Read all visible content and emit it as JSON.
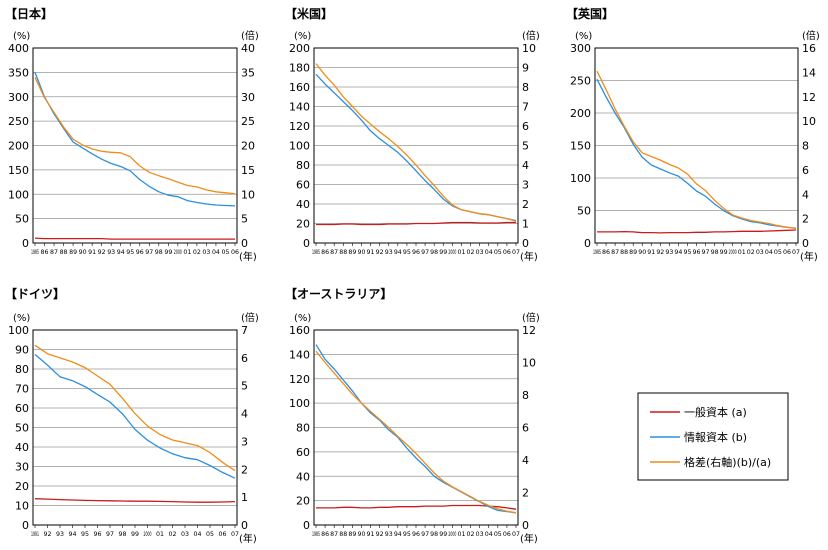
{
  "legend": {
    "items": [
      {
        "label": "一般資本 (a)",
        "color": "#cc1a1a"
      },
      {
        "label": "情報資本 (b)",
        "color": "#2b8fe0"
      },
      {
        "label": "格差(右軸)(b)/(a)",
        "color": "#f08c1a"
      }
    ]
  },
  "chart_data": [
    {
      "type": "line",
      "title": "【日本】",
      "left_unit": "(%)",
      "right_unit": "(倍)",
      "x_unit": "(年)",
      "x_labels": [
        "1985",
        "86",
        "87",
        "88",
        "89",
        "90",
        "91",
        "92",
        "93",
        "94",
        "95",
        "96",
        "97",
        "98",
        "99",
        "2000",
        "01",
        "02",
        "03",
        "04",
        "05",
        "06"
      ],
      "ylim_left": [
        0,
        400
      ],
      "yticks_left": [
        0,
        50,
        100,
        150,
        200,
        250,
        300,
        350,
        400
      ],
      "ylim_right": [
        0,
        40
      ],
      "yticks_right": [
        0,
        5,
        10,
        15,
        20,
        25,
        30,
        35,
        40
      ],
      "series": [
        {
          "name": "一般資本 (a)",
          "axis": "left",
          "color": "#cc1a1a",
          "values": [
            10,
            9,
            9,
            9,
            9,
            9,
            9,
            9,
            8,
            8,
            8,
            8,
            8,
            8,
            8,
            8,
            8,
            8,
            8,
            8,
            8,
            8
          ]
        },
        {
          "name": "情報資本 (b)",
          "axis": "left",
          "color": "#2b8fe0",
          "values": [
            350,
            300,
            265,
            235,
            207,
            195,
            183,
            172,
            163,
            157,
            148,
            130,
            116,
            105,
            98,
            95,
            87,
            83,
            80,
            78,
            77,
            76
          ]
        },
        {
          "name": "格差(右軸)(b)/(a)",
          "axis": "right",
          "color": "#f08c1a",
          "values": [
            34,
            29.8,
            26.8,
            23.8,
            21.3,
            20.1,
            19.3,
            18.8,
            18.6,
            18.5,
            17.7,
            15.8,
            14.5,
            13.8,
            13.2,
            12.5,
            11.8,
            11.5,
            10.9,
            10.5,
            10.3,
            10.1
          ]
        }
      ]
    },
    {
      "type": "line",
      "title": "【米国】",
      "left_unit": "(%)",
      "right_unit": "(倍)",
      "x_unit": "(年)",
      "x_labels": [
        "1985",
        "86",
        "87",
        "88",
        "89",
        "90",
        "91",
        "92",
        "93",
        "94",
        "95",
        "96",
        "97",
        "98",
        "99",
        "2000",
        "01",
        "02",
        "03",
        "04",
        "05",
        "06",
        "07"
      ],
      "ylim_left": [
        0,
        200
      ],
      "yticks_left": [
        0,
        20,
        40,
        60,
        80,
        100,
        120,
        140,
        160,
        180,
        200
      ],
      "ylim_right": [
        0,
        10
      ],
      "yticks_right": [
        0,
        1,
        2,
        3,
        4,
        5,
        6,
        7,
        8,
        9,
        10
      ],
      "series": [
        {
          "name": "一般資本 (a)",
          "axis": "left",
          "color": "#cc1a1a",
          "values": [
            19,
            19,
            19,
            19.5,
            19.5,
            19,
            19,
            19,
            19.5,
            19.5,
            19.5,
            20,
            20,
            20,
            20.5,
            21,
            21,
            21,
            20.5,
            20.5,
            20.5,
            21,
            21
          ]
        },
        {
          "name": "情報資本 (b)",
          "axis": "left",
          "color": "#2b8fe0",
          "values": [
            173,
            163,
            154,
            145,
            136,
            126,
            115,
            107,
            100,
            93,
            84,
            74,
            64,
            55,
            45,
            38,
            34,
            32,
            30,
            29,
            27,
            25,
            23
          ]
        },
        {
          "name": "格差(右軸)(b)/(a)",
          "axis": "right",
          "color": "#f08c1a",
          "values": [
            9.2,
            8.6,
            8.1,
            7.5,
            7.0,
            6.5,
            6.1,
            5.7,
            5.35,
            4.95,
            4.5,
            4.0,
            3.45,
            2.95,
            2.4,
            1.95,
            1.7,
            1.6,
            1.5,
            1.45,
            1.35,
            1.25,
            1.12
          ]
        }
      ]
    },
    {
      "type": "line",
      "title": "【英国】",
      "left_unit": "(%)",
      "right_unit": "(倍)",
      "x_unit": "(年)",
      "x_labels": [
        "1985",
        "86",
        "87",
        "88",
        "89",
        "90",
        "91",
        "92",
        "93",
        "94",
        "95",
        "96",
        "97",
        "98",
        "99",
        "2000",
        "01",
        "02",
        "03",
        "04",
        "05",
        "06",
        "07"
      ],
      "ylim_left": [
        0,
        300
      ],
      "yticks_left": [
        0,
        50,
        100,
        150,
        200,
        250,
        300
      ],
      "ylim_right": [
        0,
        16
      ],
      "yticks_right": [
        0,
        2,
        4,
        6,
        8,
        10,
        12,
        14,
        16
      ],
      "series": [
        {
          "name": "一般資本 (a)",
          "axis": "left",
          "color": "#cc1a1a",
          "values": [
            17,
            17,
            17,
            17.5,
            17,
            16,
            16,
            15.5,
            16,
            16,
            16,
            16.5,
            16.5,
            17,
            17,
            17.5,
            18,
            18,
            18,
            18.5,
            19,
            19.5,
            20
          ]
        },
        {
          "name": "情報資本 (b)",
          "axis": "left",
          "color": "#2b8fe0",
          "values": [
            252,
            225,
            200,
            178,
            152,
            132,
            120,
            114,
            108,
            103,
            92,
            80,
            72,
            60,
            50,
            42,
            37,
            33,
            31,
            28,
            26,
            24,
            23
          ]
        },
        {
          "name": "格差(右軸)(b)/(a)",
          "axis": "right",
          "color": "#f08c1a",
          "values": [
            14.1,
            12.6,
            11.0,
            9.6,
            8.3,
            7.4,
            7.1,
            6.8,
            6.45,
            6.15,
            5.65,
            4.85,
            4.3,
            3.5,
            2.85,
            2.3,
            2.05,
            1.85,
            1.72,
            1.6,
            1.42,
            1.3,
            1.2
          ]
        }
      ]
    },
    {
      "type": "line",
      "title": "【ドイツ】",
      "left_unit": "(%)",
      "right_unit": "(倍)",
      "x_unit": "(年)",
      "x_labels": [
        "1991",
        "92",
        "93",
        "94",
        "95",
        "96",
        "97",
        "98",
        "99",
        "2000",
        "01",
        "02",
        "03",
        "04",
        "05",
        "06",
        "07"
      ],
      "ylim_left": [
        0,
        100
      ],
      "yticks_left": [
        0,
        10,
        20,
        30,
        40,
        50,
        60,
        70,
        80,
        90,
        100
      ],
      "ylim_right": [
        0,
        7
      ],
      "yticks_right": [
        0,
        1,
        2,
        3,
        4,
        5,
        6,
        7
      ],
      "series": [
        {
          "name": "一般資本 (a)",
          "axis": "left",
          "color": "#cc1a1a",
          "values": [
            13.5,
            13.3,
            13,
            12.8,
            12.6,
            12.5,
            12.4,
            12.3,
            12.2,
            12.2,
            12.1,
            12.0,
            11.8,
            11.7,
            11.7,
            11.8,
            12.0
          ]
        },
        {
          "name": "情報資本 (b)",
          "axis": "left",
          "color": "#2b8fe0",
          "values": [
            87.5,
            82,
            76,
            74,
            71,
            67,
            63,
            57,
            49,
            43.5,
            39.5,
            36.5,
            34.5,
            33.5,
            30.5,
            27,
            24
          ]
        },
        {
          "name": "格差(右軸)(b)/(a)",
          "axis": "right",
          "color": "#f08c1a",
          "values": [
            6.45,
            6.15,
            6.0,
            5.85,
            5.65,
            5.35,
            5.05,
            4.55,
            4.0,
            3.55,
            3.25,
            3.05,
            2.95,
            2.85,
            2.6,
            2.25,
            1.95
          ]
        }
      ]
    },
    {
      "type": "line",
      "title": "【オーストラリア】",
      "left_unit": "(%)",
      "right_unit": "(倍)",
      "x_unit": "(年)",
      "x_labels": [
        "1985",
        "86",
        "87",
        "88",
        "89",
        "90",
        "91",
        "92",
        "93",
        "94",
        "95",
        "96",
        "97",
        "98",
        "99",
        "2000",
        "01",
        "02",
        "03",
        "04",
        "05",
        "06",
        "07"
      ],
      "ylim_left": [
        0,
        160
      ],
      "yticks_left": [
        0,
        20,
        40,
        60,
        80,
        100,
        120,
        140,
        160
      ],
      "ylim_right": [
        0,
        12
      ],
      "yticks_right": [
        0,
        2,
        4,
        6,
        8,
        10,
        12
      ],
      "series": [
        {
          "name": "一般資本 (a)",
          "axis": "left",
          "color": "#cc1a1a",
          "values": [
            14,
            14,
            14,
            14.5,
            14.5,
            14,
            14,
            14.5,
            14.5,
            15,
            15,
            15,
            15.5,
            15.5,
            15.5,
            16,
            16,
            16,
            16,
            15.5,
            15,
            14,
            13
          ]
        },
        {
          "name": "情報資本 (b)",
          "axis": "left",
          "color": "#2b8fe0",
          "values": [
            148,
            136,
            128,
            119,
            110,
            100,
            92,
            86,
            78,
            72,
            63,
            55,
            48,
            40,
            35,
            31,
            27,
            23,
            19,
            15,
            12,
            11,
            10
          ]
        },
        {
          "name": "格差(右軸)(b)/(a)",
          "axis": "right",
          "color": "#f08c1a",
          "values": [
            10.7,
            10.0,
            9.35,
            8.7,
            8.05,
            7.5,
            7.0,
            6.5,
            6.0,
            5.45,
            4.95,
            4.4,
            3.8,
            3.2,
            2.7,
            2.35,
            2.05,
            1.75,
            1.45,
            1.2,
            1.0,
            0.85,
            0.75
          ]
        }
      ]
    }
  ]
}
